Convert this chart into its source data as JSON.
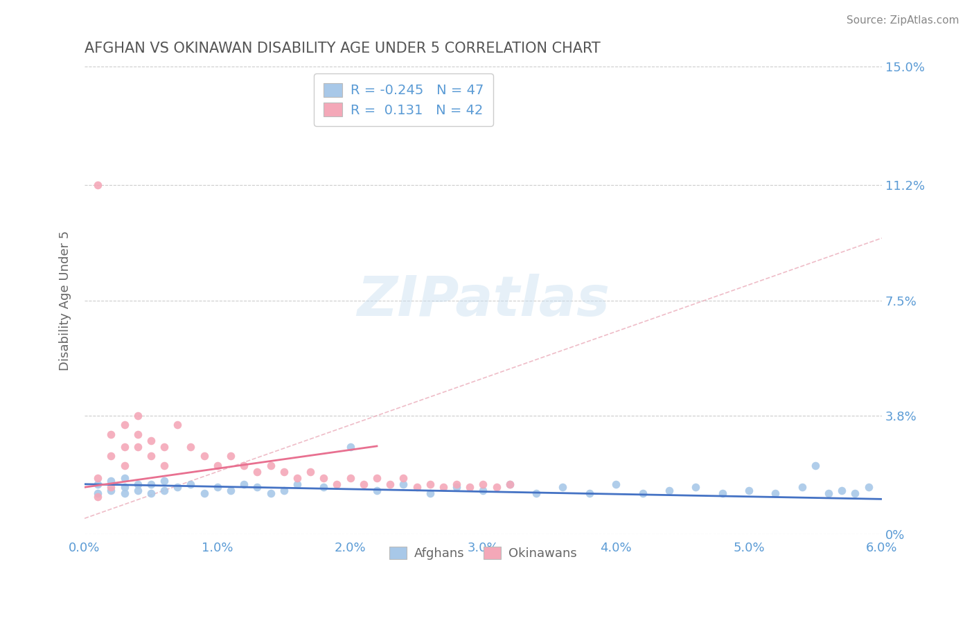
{
  "title": "AFGHAN VS OKINAWAN DISABILITY AGE UNDER 5 CORRELATION CHART",
  "source": "Source: ZipAtlas.com",
  "ylabel": "Disability Age Under 5",
  "xlim": [
    0.0,
    0.06
  ],
  "ylim": [
    0.0,
    0.15
  ],
  "yticks": [
    0.0,
    0.038,
    0.075,
    0.112,
    0.15
  ],
  "ytick_labels": [
    "0%",
    "3.8%",
    "7.5%",
    "11.2%",
    "15.0%"
  ],
  "xticks": [
    0.0,
    0.01,
    0.02,
    0.03,
    0.04,
    0.05,
    0.06
  ],
  "xtick_labels": [
    "0.0%",
    "1.0%",
    "2.0%",
    "3.0%",
    "4.0%",
    "5.0%",
    "6.0%"
  ],
  "afghan_color": "#a8c8e8",
  "okinawan_color": "#f4a8b8",
  "afghan_line_color": "#4472c4",
  "okinawan_line_color": "#e87090",
  "okinawan_trend_color": "#e8a0b0",
  "legend_afghan_r": "-0.245",
  "legend_afghan_n": "47",
  "legend_okinawan_r": "0.131",
  "legend_okinawan_n": "42",
  "axis_color": "#5b9bd5",
  "title_color": "#555555",
  "watermark": "ZIPatlas",
  "background_color": "#ffffff",
  "grid_color": "#cccccc",
  "afghan_scatter_x": [
    0.001,
    0.001,
    0.002,
    0.002,
    0.003,
    0.003,
    0.003,
    0.004,
    0.004,
    0.005,
    0.005,
    0.006,
    0.006,
    0.007,
    0.008,
    0.009,
    0.01,
    0.011,
    0.012,
    0.013,
    0.014,
    0.015,
    0.016,
    0.018,
    0.02,
    0.022,
    0.024,
    0.026,
    0.028,
    0.03,
    0.032,
    0.034,
    0.036,
    0.038,
    0.04,
    0.042,
    0.044,
    0.046,
    0.048,
    0.05,
    0.052,
    0.054,
    0.055,
    0.056,
    0.057,
    0.058,
    0.059
  ],
  "afghan_scatter_y": [
    0.013,
    0.016,
    0.014,
    0.017,
    0.013,
    0.015,
    0.018,
    0.014,
    0.016,
    0.013,
    0.016,
    0.014,
    0.017,
    0.015,
    0.016,
    0.013,
    0.015,
    0.014,
    0.016,
    0.015,
    0.013,
    0.014,
    0.016,
    0.015,
    0.028,
    0.014,
    0.016,
    0.013,
    0.015,
    0.014,
    0.016,
    0.013,
    0.015,
    0.013,
    0.016,
    0.013,
    0.014,
    0.015,
    0.013,
    0.014,
    0.013,
    0.015,
    0.022,
    0.013,
    0.014,
    0.013,
    0.015
  ],
  "okinawan_scatter_x": [
    0.001,
    0.001,
    0.001,
    0.002,
    0.002,
    0.002,
    0.003,
    0.003,
    0.003,
    0.004,
    0.004,
    0.004,
    0.005,
    0.005,
    0.006,
    0.006,
    0.007,
    0.008,
    0.009,
    0.01,
    0.011,
    0.012,
    0.013,
    0.014,
    0.015,
    0.016,
    0.017,
    0.018,
    0.019,
    0.02,
    0.021,
    0.022,
    0.023,
    0.024,
    0.025,
    0.026,
    0.027,
    0.028,
    0.029,
    0.03,
    0.031,
    0.032
  ],
  "okinawan_scatter_y": [
    0.012,
    0.018,
    0.112,
    0.025,
    0.032,
    0.015,
    0.022,
    0.028,
    0.035,
    0.028,
    0.032,
    0.038,
    0.025,
    0.03,
    0.022,
    0.028,
    0.035,
    0.028,
    0.025,
    0.022,
    0.025,
    0.022,
    0.02,
    0.022,
    0.02,
    0.018,
    0.02,
    0.018,
    0.016,
    0.018,
    0.016,
    0.018,
    0.016,
    0.018,
    0.015,
    0.016,
    0.015,
    0.016,
    0.015,
    0.016,
    0.015,
    0.016
  ]
}
